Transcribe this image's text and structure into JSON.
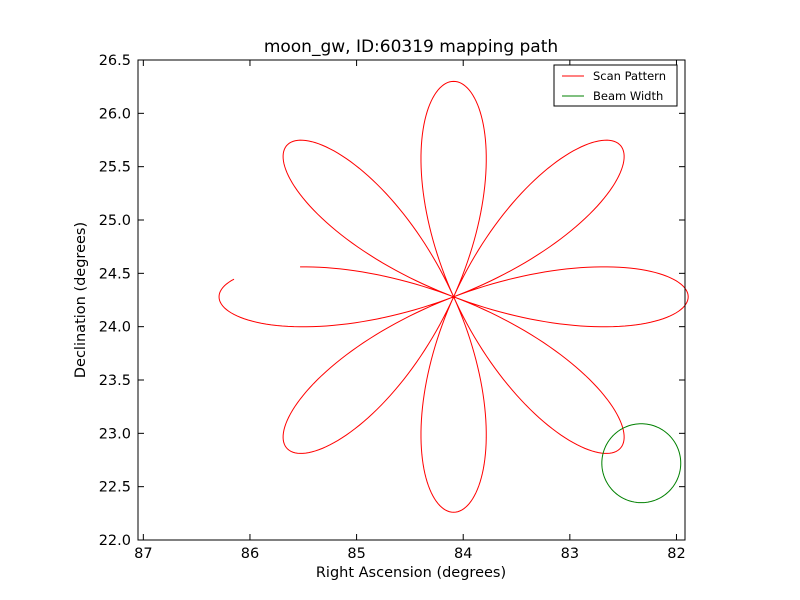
{
  "chart_data": {
    "type": "line",
    "title": "moon_gw, ID:60319 mapping path",
    "xlabel": "Right Ascension (degrees)",
    "ylabel": "Declination (degrees)",
    "xlim": [
      87.05,
      81.92
    ],
    "ylim": [
      22.0,
      26.5
    ],
    "x_ticks": [
      87,
      86,
      85,
      84,
      83,
      82
    ],
    "x_tick_labels": [
      "87",
      "86",
      "85",
      "84",
      "83",
      "82"
    ],
    "y_ticks": [
      22.0,
      22.5,
      23.0,
      23.5,
      24.0,
      24.5,
      25.0,
      25.5,
      26.0,
      26.5
    ],
    "y_tick_labels": [
      "22.0",
      "22.5",
      "23.0",
      "23.5",
      "24.0",
      "24.5",
      "25.0",
      "25.5",
      "26.0",
      "26.5"
    ],
    "grid": false,
    "legend_placement": "top-right",
    "series": [
      {
        "name": "Scan Pattern",
        "color": "#ff0000",
        "center": [
          84.09,
          24.28
        ],
        "petals": 8,
        "x_amplitude": 2.2,
        "y_amplitude": 2.02,
        "start_angle_deg": 175,
        "end_angle_deg": 528
      },
      {
        "name": "Beam Width",
        "color": "#008000",
        "center": [
          82.33,
          22.72
        ],
        "radius": 0.37
      }
    ]
  }
}
